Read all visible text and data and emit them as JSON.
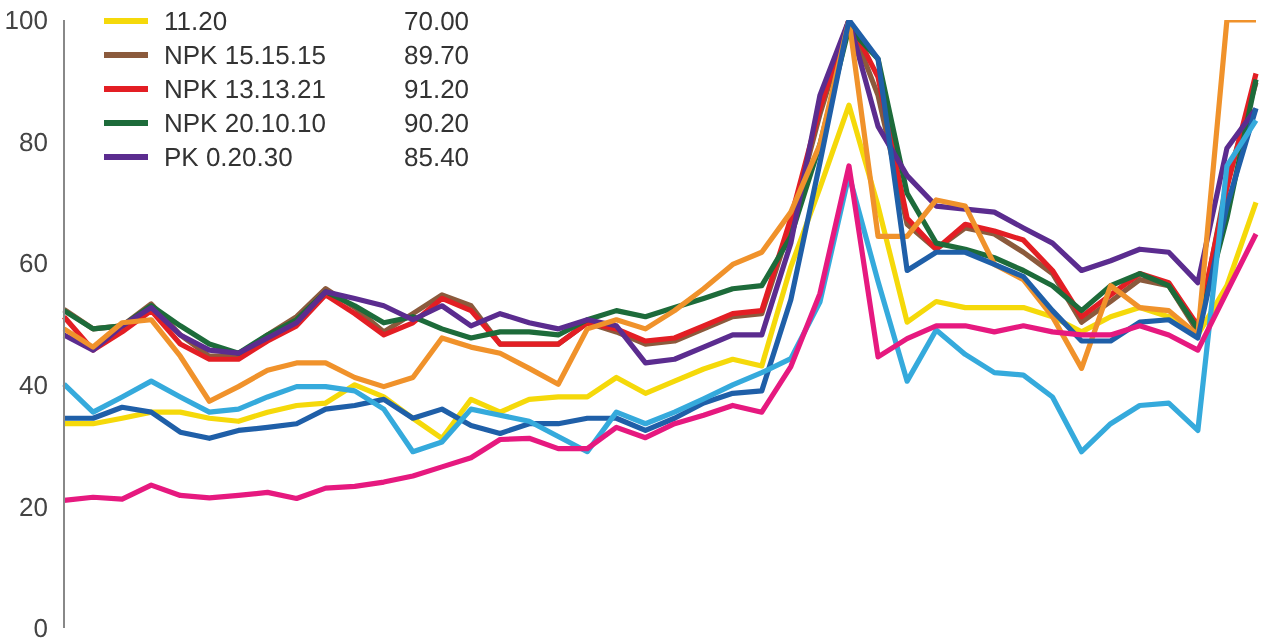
{
  "chart_data": {
    "type": "line",
    "categories": [
      null,
      null,
      null,
      null,
      null,
      null,
      null,
      null,
      null,
      null,
      null,
      null,
      null,
      null,
      null,
      null,
      null,
      null,
      null,
      null,
      null,
      null,
      null,
      null,
      null,
      null,
      null,
      null,
      null,
      null,
      null,
      null,
      null,
      null,
      null,
      null,
      null,
      null,
      null,
      null,
      null,
      null
    ],
    "series": [
      {
        "name": "11.20",
        "color": "#f5d90a",
        "values": [
          33.6,
          33.6,
          34.5,
          35.5,
          35.5,
          34.5,
          34,
          35.5,
          36.6,
          37,
          40,
          38,
          34.5,
          31.2,
          37.6,
          35.5,
          37.6,
          38,
          38,
          41.2,
          38.6,
          40.6,
          42.6,
          44.2,
          43.1,
          59.4,
          72.4,
          86,
          69.4,
          50.3,
          53.7,
          52.7,
          52.7,
          52.7,
          51.2,
          48.7,
          51.2,
          52.7,
          51.2,
          48.2,
          56.3,
          70
        ]
      },
      {
        "name": "NPK 15.15.15",
        "color": "#8b5a3c",
        "values": [
          52.4,
          49.2,
          49.7,
          53.3,
          48.2,
          44.7,
          44.7,
          48.2,
          51.2,
          55.8,
          52.7,
          48.7,
          51.7,
          54.8,
          53,
          46.7,
          46.7,
          46.7,
          50.2,
          48.7,
          46.7,
          47.2,
          49.2,
          51.2,
          51.7,
          66.4,
          84.5,
          100,
          87.6,
          66.4,
          62.3,
          65.8,
          64.8,
          61.8,
          58.3,
          50.3,
          53.7,
          57.3,
          56.3,
          48.7,
          73.4,
          89.7
        ]
      },
      {
        "name": "NPK 13.13.21",
        "color": "#e31e24",
        "values": [
          51.2,
          45.7,
          48.7,
          52.2,
          46.7,
          44.2,
          44.2,
          47.2,
          49.7,
          54.8,
          51.7,
          48.2,
          50.2,
          54.2,
          52.2,
          46.7,
          46.7,
          46.7,
          50.2,
          49.2,
          47.2,
          47.7,
          49.7,
          51.7,
          52.2,
          67.4,
          85.5,
          100,
          90.6,
          67.4,
          62.3,
          66.4,
          65.3,
          63.8,
          58.8,
          51.2,
          54.8,
          58.3,
          56.8,
          49.7,
          72.4,
          91.2
        ]
      },
      {
        "name": "NPK 20.10.10",
        "color": "#1d6b3a",
        "values": [
          52.2,
          49.2,
          49.7,
          53,
          49.7,
          46.7,
          45.2,
          48.2,
          50.7,
          55.3,
          53,
          50.2,
          51.2,
          49.2,
          47.7,
          48.7,
          48.7,
          48.2,
          50.7,
          52.2,
          51.2,
          52.7,
          54.2,
          55.8,
          56.3,
          64.4,
          79.5,
          98.7,
          93.6,
          71.5,
          63.3,
          62.3,
          60.9,
          58.8,
          56.3,
          52.2,
          56.3,
          58.3,
          56.3,
          49.2,
          67.4,
          90.2
        ]
      },
      {
        "name": "PK 0.20.30",
        "color": "#5b2c8f",
        "values": [
          48.2,
          45.7,
          49.7,
          52.7,
          48.2,
          45.7,
          45.2,
          47.7,
          50.2,
          55.3,
          54.2,
          53,
          50.7,
          53,
          49.7,
          51.7,
          50.2,
          49.2,
          50.7,
          49.7,
          43.6,
          44.2,
          46.2,
          48.2,
          48.2,
          63.3,
          87.6,
          100,
          82.5,
          74.4,
          69.4,
          68.9,
          68.4,
          65.8,
          63.3,
          58.8,
          60.4,
          62.3,
          61.8,
          56.8,
          78.9,
          85.4
        ]
      },
      {
        "color": "#f0922b",
        "values": [
          49.2,
          46.2,
          50.2,
          50.7,
          44.7,
          37.3,
          39.7,
          42.4,
          43.6,
          43.6,
          41.2,
          39.7,
          41.2,
          47.7,
          46.2,
          45.2,
          42.7,
          40.1,
          49.2,
          50.7,
          49.2,
          52.2,
          55.8,
          59.8,
          61.8,
          68.4,
          79.5,
          100,
          64.4,
          64.4,
          70.4,
          69.4,
          59.8,
          57.3,
          51.2,
          42.7,
          56.3,
          52.7,
          52.2,
          48.2,
          100,
          100
        ]
      },
      {
        "color": "#1f5fa8",
        "values": [
          34.5,
          34.5,
          36.3,
          35.5,
          32.2,
          31.2,
          32.5,
          33,
          33.6,
          36,
          36.6,
          37.6,
          34.5,
          36,
          33.3,
          32,
          33.6,
          33.6,
          34.5,
          34.5,
          32.5,
          34.5,
          37,
          38.6,
          39,
          54,
          76.5,
          100,
          93.6,
          58.8,
          61.8,
          61.8,
          59.8,
          57.8,
          52.2,
          47.2,
          47.2,
          50.3,
          50.7,
          47.7,
          69.4,
          85.5
        ]
      },
      {
        "color": "#35aadc",
        "values": [
          40.1,
          35.5,
          38,
          40.6,
          38,
          35.5,
          36,
          38,
          39.7,
          39.7,
          39,
          36,
          29,
          30.6,
          36,
          35,
          34,
          31.5,
          29,
          35.5,
          33.6,
          35.5,
          37.7,
          40,
          42,
          44.3,
          53.6,
          74.5,
          57,
          40.6,
          49,
          45,
          42,
          41.6,
          38,
          29,
          33.6,
          36.6,
          37,
          32.5,
          76,
          83.5
        ]
      },
      {
        "color": "#e6197f",
        "values": [
          21,
          21.5,
          21.2,
          23.5,
          21.8,
          21.4,
          21.8,
          22.3,
          21.3,
          23,
          23.3,
          24,
          25,
          26.5,
          28,
          31,
          31.2,
          29.5,
          29.5,
          33,
          31.3,
          33.6,
          35,
          36.6,
          35.5,
          43,
          55,
          76,
          44.6,
          47.6,
          49.7,
          49.7,
          48.7,
          49.7,
          48.7,
          48.2,
          48.2,
          49.7,
          48.2,
          45.7,
          55.3,
          64.8
        ]
      }
    ],
    "annotations": [
      "70.00",
      "89.70",
      "91.20",
      "90.20",
      "85.40"
    ],
    "ylim": [
      0,
      100
    ],
    "yticks": [
      0,
      20,
      40,
      60,
      80,
      100
    ],
    "tick_labels": "y",
    "legend": "top left",
    "marker": "none"
  }
}
